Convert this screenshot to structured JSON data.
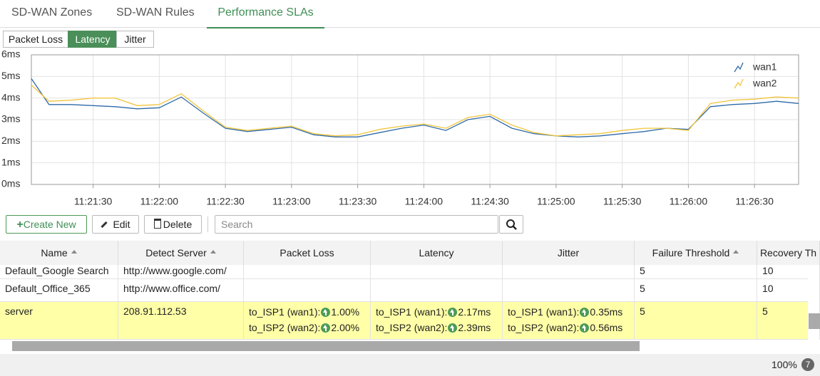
{
  "tabs": [
    "SD-WAN Zones",
    "SD-WAN Rules",
    "Performance SLAs"
  ],
  "subtabs": [
    "Packet Loss",
    "Latency",
    "Jitter"
  ],
  "chart_data": {
    "type": "line",
    "x": [
      "11:21:02",
      "11:21:10",
      "11:21:20",
      "11:21:30",
      "11:21:40",
      "11:21:50",
      "11:22:00",
      "11:22:10",
      "11:22:20",
      "11:22:30",
      "11:22:40",
      "11:22:50",
      "11:23:00",
      "11:23:10",
      "11:23:20",
      "11:23:30",
      "11:23:40",
      "11:23:50",
      "11:24:00",
      "11:24:10",
      "11:24:20",
      "11:24:30",
      "11:24:40",
      "11:24:50",
      "11:25:00",
      "11:25:10",
      "11:25:20",
      "11:25:30",
      "11:25:40",
      "11:25:50",
      "11:26:00",
      "11:26:10",
      "11:26:20",
      "11:26:30",
      "11:26:40",
      "11:26:50"
    ],
    "series": [
      {
        "name": "wan1",
        "color": "#2d6aa8",
        "values": [
          4.9,
          3.7,
          3.7,
          3.65,
          3.6,
          3.5,
          3.55,
          4.05,
          3.3,
          2.6,
          2.45,
          2.55,
          2.65,
          2.3,
          2.2,
          2.2,
          2.4,
          2.6,
          2.75,
          2.5,
          3.0,
          3.15,
          2.6,
          2.35,
          2.25,
          2.2,
          2.25,
          2.35,
          2.45,
          2.6,
          2.55,
          3.6,
          3.7,
          3.75,
          3.85,
          3.75
        ]
      },
      {
        "name": "wan2",
        "color": "#f2c53d",
        "values": [
          4.6,
          3.85,
          3.9,
          4.0,
          4.0,
          3.65,
          3.7,
          4.2,
          3.4,
          2.65,
          2.5,
          2.6,
          2.7,
          2.35,
          2.25,
          2.3,
          2.55,
          2.7,
          2.8,
          2.6,
          3.1,
          3.25,
          2.75,
          2.4,
          2.25,
          2.3,
          2.35,
          2.5,
          2.6,
          2.6,
          2.5,
          3.75,
          3.9,
          3.95,
          4.05,
          4.0
        ]
      }
    ],
    "xlim": [
      "11:21:02",
      "11:26:50"
    ],
    "xticks": [
      "11:21:30",
      "11:22:00",
      "11:22:30",
      "11:23:00",
      "11:23:30",
      "11:24:00",
      "11:24:30",
      "11:25:00",
      "11:25:30",
      "11:26:00",
      "11:26:30"
    ],
    "ylim": [
      0,
      6
    ],
    "yticks": [
      {
        "value": 0,
        "label": "0ms"
      },
      {
        "value": 1,
        "label": "1ms"
      },
      {
        "value": 2,
        "label": "2ms"
      },
      {
        "value": 3,
        "label": "3ms"
      },
      {
        "value": 4,
        "label": "4ms"
      },
      {
        "value": 5,
        "label": "5ms"
      },
      {
        "value": 6,
        "label": "6ms"
      }
    ],
    "grid": true,
    "legend": "top-right"
  },
  "toolbar": {
    "create": "Create New",
    "edit": "Edit",
    "delete": "Delete",
    "search": "Search"
  },
  "table": {
    "headers": [
      "Name",
      "Detect Server",
      "Packet Loss",
      "Latency",
      "Jitter",
      "Failure Threshold",
      "Recovery Th"
    ],
    "rows": [
      [
        "Default_Google Search",
        "http://www.google.com/",
        null,
        null,
        null,
        "5",
        "10"
      ],
      [
        "Default_Office_365",
        "http://www.office.com/",
        null,
        null,
        null,
        "5",
        "10"
      ],
      [
        "server",
        "208.91.112.53",
        [
          {
            "link": "to_ISP1 (wan1):",
            "value": "1.00%"
          },
          {
            "link": "to_ISP2 (wan2):",
            "value": "2.00%"
          }
        ],
        [
          {
            "link": "to_ISP1 (wan1):",
            "value": "2.17ms"
          },
          {
            "link": "to_ISP2 (wan2):",
            "value": "2.39ms"
          }
        ],
        [
          {
            "link": "to_ISP1 (wan1):",
            "value": "0.35ms"
          },
          {
            "link": "to_ISP2 (wan2):",
            "value": "0.56ms"
          }
        ],
        "5",
        "5"
      ]
    ]
  },
  "footer": {
    "zoom": "100%",
    "badge": "7"
  }
}
